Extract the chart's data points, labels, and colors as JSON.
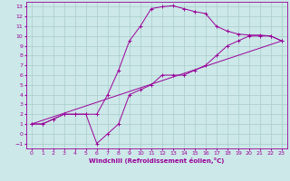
{
  "title": "",
  "xlabel": "Windchill (Refroidissement éolien,°C)",
  "ylabel": "",
  "bg_color": "#cce8e8",
  "line_color": "#990099",
  "grid_color": "#aacccc",
  "xlim": [
    -0.5,
    23.5
  ],
  "ylim": [
    -1.5,
    13.5
  ],
  "xticks": [
    0,
    1,
    2,
    3,
    4,
    5,
    6,
    7,
    8,
    9,
    10,
    11,
    12,
    13,
    14,
    15,
    16,
    17,
    18,
    19,
    20,
    21,
    22,
    23
  ],
  "yticks": [
    -1,
    0,
    1,
    2,
    3,
    4,
    5,
    6,
    7,
    8,
    9,
    10,
    11,
    12,
    13
  ],
  "curve1_x": [
    0,
    1,
    2,
    3,
    4,
    5,
    6,
    7,
    8,
    9,
    10,
    11,
    12,
    13,
    14,
    15,
    16,
    17,
    18,
    19,
    20,
    21,
    22,
    23
  ],
  "curve1_y": [
    1,
    1,
    1.5,
    2,
    2,
    2,
    2,
    4,
    6.5,
    9.5,
    11,
    12.8,
    13,
    13.1,
    12.8,
    12.5,
    12.3,
    11.0,
    10.5,
    10.2,
    10.1,
    10.1,
    10.0,
    9.5
  ],
  "curve2_x": [
    0,
    1,
    2,
    3,
    4,
    5,
    6,
    7,
    8,
    9,
    10,
    11,
    12,
    13,
    14,
    15,
    16,
    17,
    18,
    19,
    20,
    21,
    22,
    23
  ],
  "curve2_y": [
    1,
    1,
    1.5,
    2,
    2,
    2,
    -1,
    0,
    1,
    4,
    4.5,
    5,
    6,
    6,
    6,
    6.5,
    7,
    8,
    9,
    9.5,
    10,
    10,
    10,
    9.5
  ],
  "curve3_x": [
    0,
    23
  ],
  "curve3_y": [
    1,
    9.5
  ],
  "tick_fontsize": 4.5,
  "xlabel_fontsize": 5.0
}
